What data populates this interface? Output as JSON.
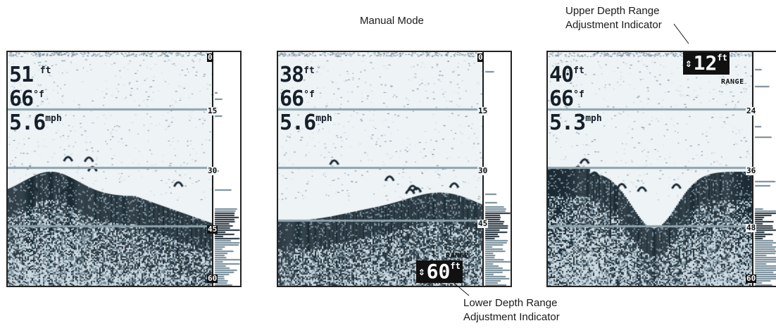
{
  "captions": {
    "manual_mode": "Manual Mode",
    "upper_indicator": [
      "Upper Depth Range",
      "Adjustment Indicator"
    ],
    "lower_indicator": [
      "Lower Depth Range",
      "Adjustment Indicator"
    ]
  },
  "screens": [
    {
      "depth": "51",
      "depth_unit": "ft",
      "temp": "66",
      "temp_unit": "°f",
      "speed": "5.6",
      "speed_unit": "mph",
      "scale_labels": [
        "0",
        "15",
        "30",
        "45",
        "60"
      ],
      "seed": 11
    },
    {
      "depth": "38",
      "depth_unit": "ft",
      "temp": "66",
      "temp_unit": "°f",
      "speed": "5.6",
      "speed_unit": "mph",
      "scale_labels": [
        "0",
        "15",
        "30",
        "45",
        "60"
      ],
      "range_label": "RANGE",
      "range_value": "60",
      "range_unit": "ft",
      "range_arrows": "⇕",
      "seed": 29
    },
    {
      "depth": "40",
      "depth_unit": "ft",
      "temp": "66",
      "temp_unit": "°f",
      "speed": "5.3",
      "speed_unit": "mph",
      "scale_labels": [
        "24",
        "36",
        "48",
        "60"
      ],
      "range_label": "RANGE",
      "range_value": "12",
      "range_unit": "ft",
      "range_arrows": "⇕",
      "seed": 47
    }
  ],
  "colors": {
    "sonar_dark": "#1b2a33",
    "sonar_mid": "#6f8794",
    "sonar_light": "#c9d7df",
    "background": "#eef3f6",
    "grid": "#8fa3ad"
  }
}
